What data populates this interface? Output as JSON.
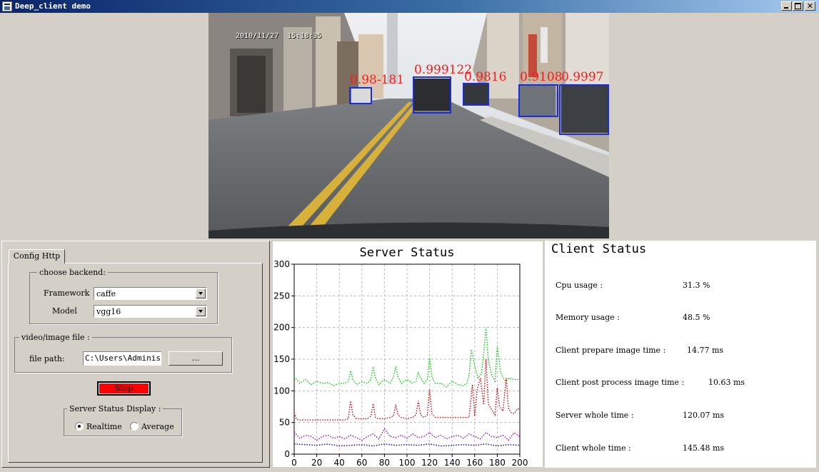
{
  "window": {
    "title": "Deep_client demo"
  },
  "video": {
    "timestamp": "2010/11/27  15:18:35",
    "detections": [
      {
        "label": "0.98-181"
      },
      {
        "label": "0.999122"
      },
      {
        "label": "0.9816"
      },
      {
        "label": "0.9108"
      },
      {
        "label": "0.9997"
      }
    ],
    "box_color": "#1a2cdc",
    "label_color": "#ff1a1a"
  },
  "config": {
    "tab_label": "Config Http",
    "backend_group_title": "choose backend:",
    "framework_label": "Framework",
    "framework_value": "caffe",
    "model_label": "Model",
    "model_value": "vgg16",
    "file_group_title": "video/image file :",
    "file_path_label": "file path:",
    "file_path_value": "C:\\Users\\Administ",
    "browse_label": "...",
    "stop_label": "Stop",
    "status_display_title": "Server Status Display :",
    "realtime_label": "Realtime",
    "average_label": "Average",
    "selected_mode": "Realtime"
  },
  "client_status": {
    "title": "Client Status",
    "rows": [
      {
        "label": "Cpu usage :",
        "value": "31.3 %"
      },
      {
        "label": "Memory usage :",
        "value": "48.5 %"
      },
      {
        "label": "Client prepare image time :",
        "value": "14.77 ms"
      },
      {
        "label": "Client post process image time :",
        "value": "10.63 ms"
      },
      {
        "label": "Server whole time :",
        "value": "120.07 ms"
      },
      {
        "label": "Client whole time :",
        "value": "145.48 ms"
      }
    ]
  },
  "chart_data": {
    "type": "line",
    "title": "Server Status",
    "xlabel": "",
    "ylabel": "",
    "xlim": [
      0,
      200
    ],
    "ylim": [
      0,
      300
    ],
    "xticks": [
      0,
      20,
      40,
      60,
      80,
      100,
      120,
      140,
      160,
      180,
      200
    ],
    "yticks": [
      0,
      50,
      100,
      150,
      200,
      250,
      300
    ],
    "grid": true,
    "series": [
      {
        "color": "#00cc00",
        "style": "dotted",
        "x": [
          0,
          5,
          10,
          15,
          20,
          25,
          30,
          35,
          40,
          45,
          48,
          50,
          52,
          55,
          60,
          65,
          68,
          70,
          72,
          75,
          80,
          85,
          88,
          90,
          92,
          95,
          100,
          105,
          108,
          110,
          112,
          115,
          118,
          120,
          122,
          125,
          130,
          135,
          140,
          145,
          150,
          153,
          155,
          157,
          160,
          163,
          166,
          168,
          170,
          172,
          175,
          178,
          180,
          183,
          186,
          188,
          190,
          195,
          200
        ],
        "y": [
          122,
          112,
          118,
          110,
          115,
          112,
          113,
          108,
          112,
          112,
          115,
          132,
          118,
          110,
          114,
          112,
          118,
          138,
          120,
          110,
          118,
          112,
          122,
          138,
          122,
          112,
          118,
          112,
          115,
          130,
          120,
          112,
          118,
          152,
          122,
          112,
          112,
          106,
          115,
          110,
          108,
          112,
          125,
          165,
          140,
          120,
          128,
          160,
          200,
          150,
          125,
          115,
          170,
          130,
          118,
          115,
          120,
          118,
          118
        ]
      },
      {
        "color": "#dd0000",
        "style": "dotted",
        "x": [
          0,
          2,
          5,
          10,
          20,
          30,
          40,
          45,
          48,
          50,
          52,
          55,
          60,
          65,
          68,
          70,
          72,
          75,
          80,
          85,
          88,
          90,
          92,
          95,
          100,
          105,
          108,
          110,
          112,
          115,
          118,
          120,
          122,
          125,
          130,
          140,
          150,
          155,
          158,
          160,
          162,
          165,
          168,
          170,
          172,
          175,
          178,
          180,
          182,
          185,
          188,
          190,
          192,
          195,
          198,
          200
        ],
        "y": [
          65,
          55,
          54,
          54,
          54,
          54,
          54,
          54,
          56,
          84,
          62,
          56,
          56,
          56,
          60,
          80,
          58,
          56,
          56,
          58,
          60,
          78,
          62,
          58,
          56,
          58,
          62,
          84,
          62,
          58,
          62,
          102,
          64,
          58,
          58,
          58,
          58,
          58,
          110,
          60,
          100,
          120,
          78,
          150,
          80,
          70,
          62,
          105,
          75,
          68,
          120,
          72,
          66,
          64,
          72,
          70
        ]
      },
      {
        "color": "#9900cc",
        "style": "dotted",
        "x": [
          0,
          5,
          10,
          15,
          20,
          25,
          30,
          35,
          40,
          45,
          50,
          55,
          60,
          65,
          70,
          75,
          80,
          85,
          90,
          95,
          100,
          105,
          110,
          115,
          120,
          125,
          130,
          135,
          140,
          145,
          150,
          155,
          160,
          165,
          170,
          175,
          180,
          185,
          190,
          195,
          200
        ],
        "y": [
          35,
          25,
          30,
          28,
          22,
          28,
          30,
          25,
          28,
          24,
          30,
          26,
          22,
          28,
          32,
          24,
          40,
          28,
          26,
          30,
          25,
          32,
          26,
          28,
          34,
          26,
          30,
          24,
          28,
          30,
          25,
          32,
          28,
          24,
          34,
          28,
          26,
          30,
          22,
          34,
          28
        ]
      },
      {
        "color": "#0000aa",
        "style": "dotted",
        "x": [
          0,
          10,
          20,
          30,
          40,
          50,
          60,
          70,
          80,
          90,
          100,
          110,
          120,
          130,
          140,
          150,
          160,
          170,
          180,
          190,
          200
        ],
        "y": [
          16,
          15,
          14,
          16,
          13,
          14,
          15,
          13,
          16,
          14,
          15,
          14,
          16,
          13,
          14,
          15,
          14,
          16,
          13,
          15,
          14
        ]
      }
    ]
  }
}
